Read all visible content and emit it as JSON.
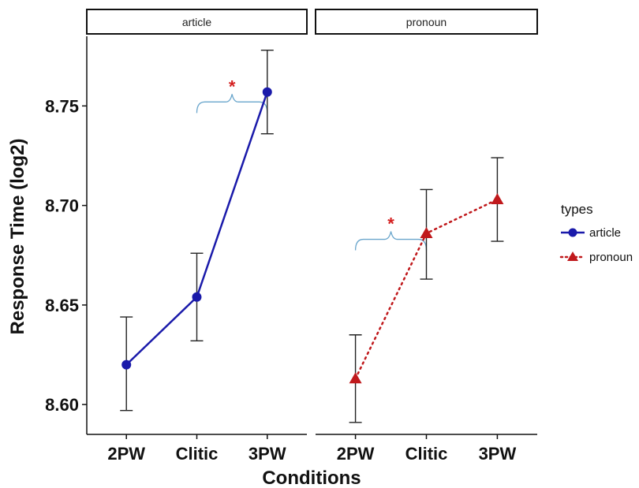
{
  "chart_data": {
    "type": "line",
    "facets": [
      "article",
      "pronoun"
    ],
    "categories": [
      "2PW",
      "Clitic",
      "3PW"
    ],
    "xlabel": "Conditions",
    "ylabel": "Response Time (log2)",
    "ylim": [
      8.585,
      8.785
    ],
    "yticks": [
      "8.60",
      "8.65",
      "8.70",
      "8.75"
    ],
    "ytick_values": [
      8.6,
      8.65,
      8.7,
      8.75
    ],
    "grid": false,
    "legend": {
      "title": "types",
      "placement": "right",
      "entries": [
        "article",
        "pronoun"
      ]
    },
    "series": [
      {
        "name": "article",
        "facet": "article",
        "color": "#1a1aaa",
        "marker": "circle",
        "line": "solid",
        "values": [
          8.62,
          8.654,
          8.757
        ],
        "err_low": [
          8.597,
          8.632,
          8.736
        ],
        "err_high": [
          8.644,
          8.676,
          8.778
        ]
      },
      {
        "name": "pronoun",
        "facet": "pronoun",
        "color": "#c0191c",
        "marker": "triangle",
        "line": "dotted",
        "values": [
          8.613,
          8.686,
          8.703
        ],
        "err_low": [
          8.591,
          8.663,
          8.682
        ],
        "err_high": [
          8.635,
          8.708,
          8.724
        ]
      }
    ],
    "annotations": [
      {
        "facet": "article",
        "text": "*",
        "from": "Clitic",
        "to": "3PW",
        "y": 8.752
      },
      {
        "facet": "pronoun",
        "text": "*",
        "from": "2PW",
        "to": "Clitic",
        "y": 8.683
      }
    ],
    "colors": {
      "significance_star": "#d42020",
      "bracket": "#6aa6cc",
      "errorbar": "#222222"
    }
  }
}
